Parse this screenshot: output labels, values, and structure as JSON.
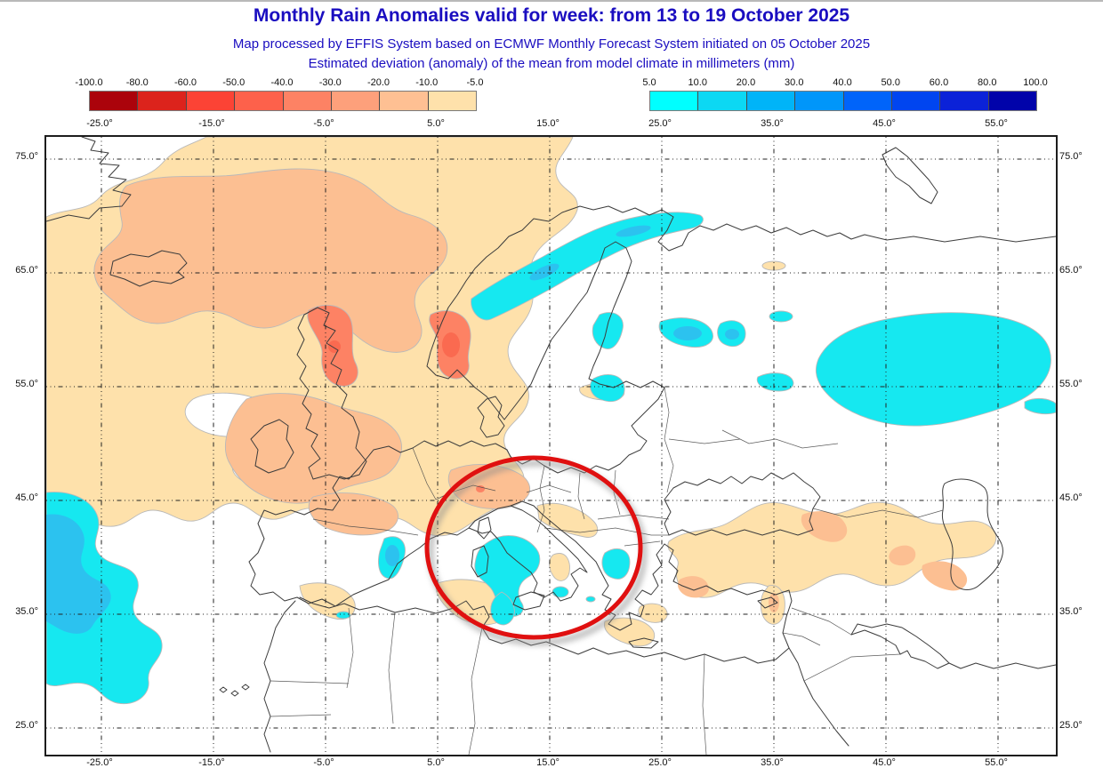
{
  "header": {
    "title": "Monthly Rain Anomalies valid for week: from 13 to 19 October 2025",
    "subtitle1": "Map processed by EFFIS System based on ECMWF Monthly Forecast System initiated on 05 October 2025",
    "subtitle2": "Estimated deviation (anomaly) of the mean from model climate in millimeters (mm)",
    "title_color": "#1a0dc0"
  },
  "legend_negative": {
    "labels": [
      "-100.0",
      "-80.0",
      "-60.0",
      "-50.0",
      "-40.0",
      "-30.0",
      "-20.0",
      "-10.0",
      "-5.0"
    ],
    "colors": [
      "#ab030b",
      "#dc231c",
      "#fc4335",
      "#fd614b",
      "#fd8264",
      "#fda07b",
      "#fec093",
      "#fee1ab"
    ]
  },
  "legend_positive": {
    "labels": [
      "5.0",
      "10.0",
      "20.0",
      "30.0",
      "40.0",
      "50.0",
      "60.0",
      "80.0",
      "100.0"
    ],
    "colors": [
      "#00ffff",
      "#0cd8f3",
      "#00b4f8",
      "#0096fa",
      "#0064fa",
      "#0045f0",
      "#0b22d8",
      "#0103aa"
    ]
  },
  "axes": {
    "lon_labels": [
      "-25.0°",
      "-15.0°",
      "-5.0°",
      "5.0°",
      "15.0°",
      "25.0°",
      "35.0°",
      "45.0°",
      "55.0°"
    ],
    "lat_labels": [
      "75.0°",
      "65.0°",
      "55.0°",
      "45.0°",
      "35.0°",
      "25.0°"
    ]
  },
  "map_palette": {
    "pale": "#fee1ab",
    "medium": "#fcbf92",
    "strong": "#fd8264",
    "deep": "#fa6a50",
    "cyan": "#16e8f0",
    "cyanDark": "#2cc2ef",
    "white": "#ffffff",
    "coast": "#3c3c3c",
    "border": "#4a4a4a",
    "contourEdge": "#b9b9b9",
    "grid": "#222222"
  },
  "annotation": {
    "shape": "ellipse",
    "color": "#e01010",
    "area": "central Mediterranean: Italy, Tyrrhenian Sea, Sicily, Tunisia, Ionian Sea"
  },
  "regions": [
    {
      "name": "northwest-europe-scandinavia-france",
      "anomaly_mm": "-20 to -5",
      "tone": "pale/medium orange"
    },
    {
      "name": "southern-norway",
      "anomaly_mm": "-50 to -30",
      "tone": "strong orange-red"
    },
    {
      "name": "scotland",
      "anomaly_mm": "-40 to -30",
      "tone": "strong orange-red"
    },
    {
      "name": "alps",
      "anomaly_mm": "-30 to -10",
      "tone": "medium orange"
    },
    {
      "name": "turkey-caucasus-iran-band",
      "anomaly_mm": "-20 to -5",
      "tone": "pale orange"
    },
    {
      "name": "north-atlantic-west",
      "anomaly_mm": "+5 to +20",
      "tone": "cyan/blue"
    },
    {
      "name": "northern-norway-coast",
      "anomaly_mm": "+5 to +10",
      "tone": "cyan"
    },
    {
      "name": "baltic-states",
      "anomaly_mm": "+5 to +10",
      "tone": "cyan"
    },
    {
      "name": "western-russia-east",
      "anomaly_mm": "+5 to +10",
      "tone": "cyan"
    },
    {
      "name": "tyrrhenian-sicily-tunisia",
      "anomaly_mm": "+5 to +10",
      "tone": "cyan",
      "highlighted": true
    },
    {
      "name": "ionian-greece-coast",
      "anomaly_mm": "+5 to +10",
      "tone": "cyan",
      "highlighted": true
    },
    {
      "name": "balearic-sea",
      "anomaly_mm": "+5 to +20",
      "tone": "cyan"
    }
  ]
}
